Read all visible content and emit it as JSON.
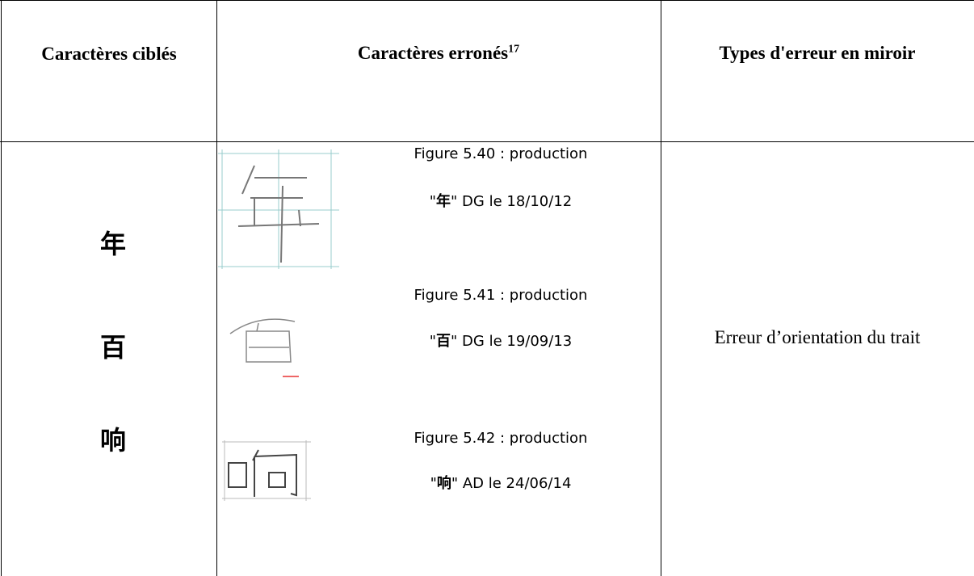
{
  "table": {
    "header": [
      "Caractères ciblés",
      "Caractères erronés",
      "Types d'erreur en miroir"
    ],
    "header_note": "17",
    "targets": [
      "年",
      "百",
      "响"
    ],
    "figures": [
      {
        "caption": "Figure 5.40 : production",
        "line": [
          "\"",
          "年",
          "\" DG le 18/10/12"
        ]
      },
      {
        "caption": "Figure 5.41 : production",
        "line": [
          "\"",
          "百",
          "\" DG le 19/09/13"
        ]
      },
      {
        "caption": "Figure 5.42 : production",
        "line": [
          "\"",
          "响",
          "\" AD le 24/06/14"
        ]
      }
    ],
    "type": "Erreur d’orientation du trait"
  }
}
